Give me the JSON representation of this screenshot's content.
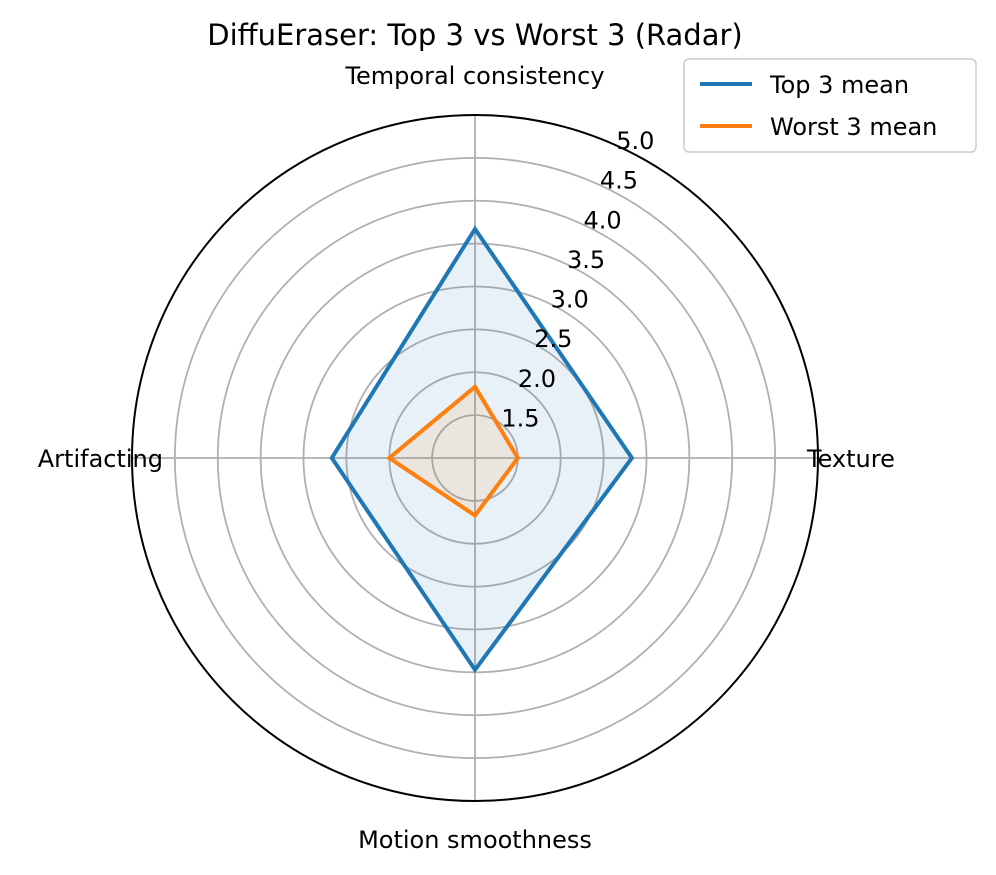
{
  "chart_data": {
    "type": "radar",
    "title": "DiffuEraser: Top 3 vs Worst 3 (Radar)",
    "axes": [
      "Temporal consistency",
      "Texture",
      "Motion smoothness",
      "Artifacting"
    ],
    "rlim": [
      1.0,
      5.0
    ],
    "r_ticks": [
      "1.5",
      "2.0",
      "2.5",
      "3.0",
      "3.5",
      "4.0",
      "4.5",
      "5.0"
    ],
    "grid": true,
    "legend_position": "top-right",
    "series": [
      {
        "name": "Top 3 mean",
        "color": "#1f77b4",
        "values": [
          3.67,
          2.83,
          3.47,
          2.67
        ]
      },
      {
        "name": "Worst 3 mean",
        "color": "#ff7f0e",
        "values": [
          1.83,
          1.5,
          1.67,
          2.0
        ]
      }
    ]
  }
}
